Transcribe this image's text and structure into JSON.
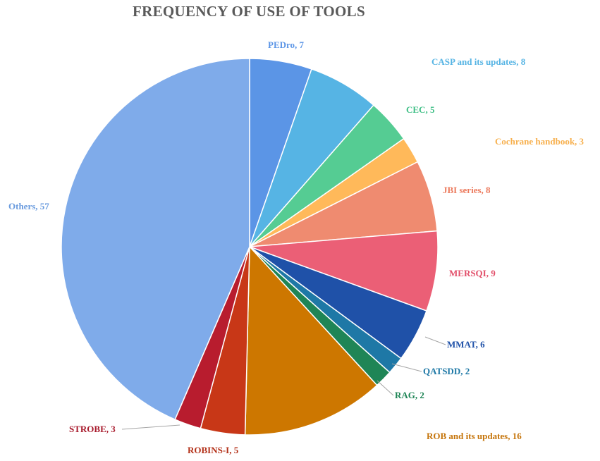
{
  "chart_data": {
    "type": "pie",
    "title": "FREQUENCY OF USE OF TOOLS",
    "slices": [
      {
        "name": "PEDro",
        "value": 7,
        "label": "PEDro, 7",
        "color": "#5B95E6",
        "label_color": "#5B95E6"
      },
      {
        "name": "CASP and its updates",
        "value": 8,
        "label": "CASP and its updates, 8",
        "color": "#56B4E4",
        "label_color": "#56B4E4"
      },
      {
        "name": "CEC",
        "value": 5,
        "label": "CEC, 5",
        "color": "#55CC93",
        "label_color": "#3FBF86"
      },
      {
        "name": "Cochrane handbook",
        "value": 3,
        "label": "Cochrane handbook, 3",
        "color": "#FFB95A",
        "label_color": "#F7B04E"
      },
      {
        "name": "JBI series",
        "value": 8,
        "label": "JBI series, 8",
        "color": "#EF8B70",
        "label_color": "#EC7B5E"
      },
      {
        "name": "MERSQI",
        "value": 9,
        "label": "MERSQI, 9",
        "color": "#EB5F76",
        "label_color": "#E2506B"
      },
      {
        "name": "MMAT",
        "value": 6,
        "label": "MMAT, 6",
        "color": "#1F51A8",
        "label_color": "#1F51A8"
      },
      {
        "name": "QATSDD",
        "value": 2,
        "label": "QATSDD, 2",
        "color": "#1E78A6",
        "label_color": "#1E78A6"
      },
      {
        "name": "RAG",
        "value": 2,
        "label": "RAG, 2",
        "color": "#1F8556",
        "label_color": "#1F8556"
      },
      {
        "name": "ROB and its updates",
        "value": 16,
        "label": "ROB and its updates, 16",
        "color": "#CD7700",
        "label_color": "#C5740A"
      },
      {
        "name": "ROBINS-I",
        "value": 5,
        "label": "ROBINS-I, 5",
        "color": "#C83717",
        "label_color": "#B33018"
      },
      {
        "name": "STROBE",
        "value": 3,
        "label": "STROBE, 3",
        "color": "#B81C2E",
        "label_color": "#A81A2C"
      },
      {
        "name": "Others",
        "value": 57,
        "label": "Others, 57",
        "color": "#7FABEA",
        "label_color": "#6A9BDE"
      }
    ]
  }
}
